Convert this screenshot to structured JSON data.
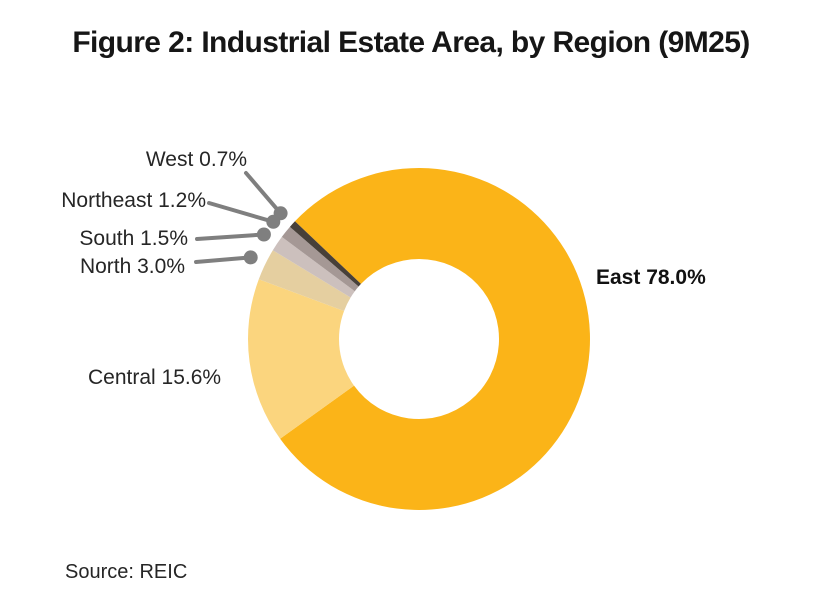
{
  "title": "Figure 2: Industrial Estate Area, by Region (9M25)",
  "source_note": "Source: REIC",
  "chart_data": {
    "type": "pie",
    "subtype": "donut",
    "title": "Figure 2: Industrial Estate Area, by Region (9M25)",
    "categories": [
      "East",
      "Central",
      "North",
      "South",
      "Northeast",
      "West"
    ],
    "values": [
      78.0,
      15.6,
      3.0,
      1.5,
      1.2,
      0.7
    ],
    "unit": "%",
    "colors": [
      "#FBB418",
      "#FBD57E",
      "#E5CFA0",
      "#CCC0BD",
      "#A59895",
      "#474039"
    ],
    "labels": {
      "east": "East 78.0%",
      "central": "Central 15.6%",
      "north": "North 3.0%",
      "south": "South 1.5%",
      "northeast": "Northeast 1.2%",
      "west": "West 0.7%"
    },
    "legend": "none",
    "start_angle_deg": 313.5,
    "hole_ratio": 0.465,
    "leader_color": "#7F7F7F",
    "label_style": {
      "east_bold": true,
      "text_color": "#262626"
    }
  }
}
